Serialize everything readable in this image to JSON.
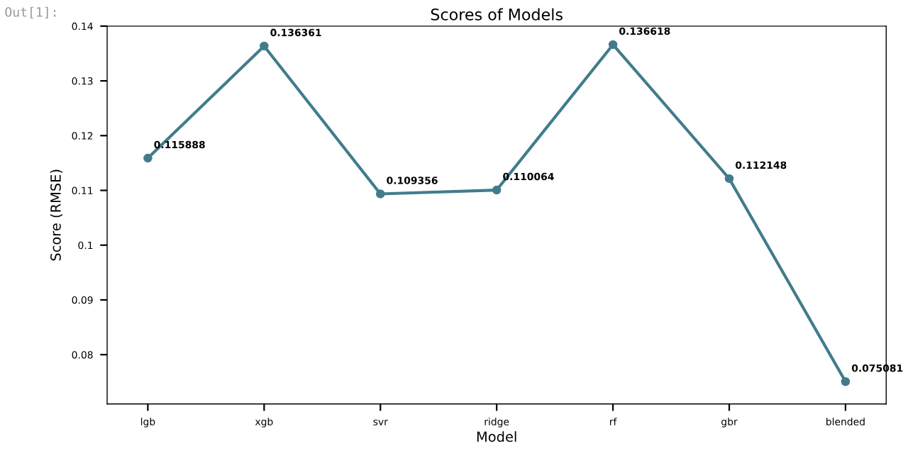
{
  "chart_data": {
    "type": "line",
    "title": "Scores of Models",
    "xlabel": "Model",
    "ylabel": "Score (RMSE)",
    "categories": [
      "lgb",
      "xgb",
      "svr",
      "ridge",
      "rf",
      "gbr",
      "blended"
    ],
    "values": [
      0.115888,
      0.136361,
      0.109356,
      0.110064,
      0.136618,
      0.112148,
      0.075081
    ],
    "color": "#427c8c",
    "marker": "circle",
    "data_labels": true,
    "ylim": [
      0.071,
      0.14
    ],
    "yticks": [
      0.08,
      0.09,
      0.1,
      0.11,
      0.12,
      0.13,
      0.14
    ],
    "grid": false,
    "legend": false,
    "annotations": [
      "Out[1]:"
    ]
  }
}
